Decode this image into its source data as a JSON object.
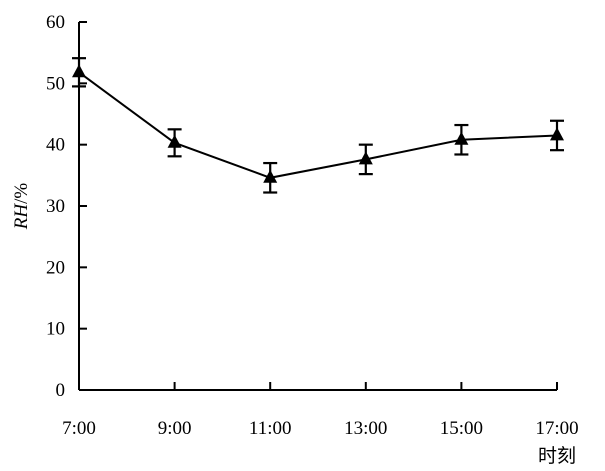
{
  "chart_data": {
    "type": "line",
    "title": "",
    "xlabel": "时刻",
    "ylabel_italic": "RH",
    "ylabel_unit": "/%",
    "categories": [
      "7:00",
      "9:00",
      "11:00",
      "13:00",
      "15:00",
      "17:00"
    ],
    "ylim": [
      0,
      60
    ],
    "yticks": [
      0,
      10,
      20,
      30,
      40,
      50,
      60
    ],
    "ytick_labels": [
      "0",
      "10",
      "20",
      "30",
      "40",
      "50",
      "60"
    ],
    "grid": false,
    "legend": "none",
    "series": [
      {
        "values": [
          51.8,
          40.3,
          34.6,
          37.6,
          40.8,
          41.5
        ],
        "error": [
          2.3,
          2.2,
          2.4,
          2.4,
          2.4,
          2.4
        ],
        "marker": "triangle",
        "color": "#000000"
      }
    ]
  }
}
